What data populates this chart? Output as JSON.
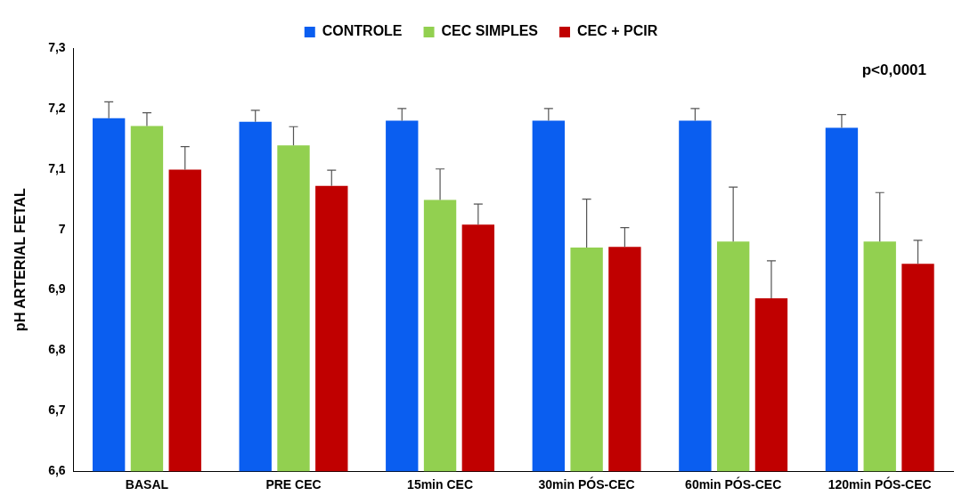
{
  "chart_data": {
    "type": "bar",
    "ylabel": "pH ARTERIAL FETAL",
    "categories": [
      "BASAL",
      "PRE CEC",
      "15min CEC",
      "30min PÓS-CEC",
      "60min PÓS-CEC",
      "120min PÓS-CEC"
    ],
    "series": [
      {
        "name": "CONTROLE",
        "color": "#0a5ef0",
        "values": [
          7.184,
          7.178,
          7.18,
          7.18,
          7.18,
          7.168
        ],
        "errors": [
          [
            7.184,
            7.211
          ],
          [
            7.178,
            7.197
          ],
          [
            7.18,
            7.2
          ],
          [
            7.18,
            7.2
          ],
          [
            7.18,
            7.2
          ],
          [
            7.168,
            7.19
          ]
        ]
      },
      {
        "name": "CEC SIMPLES",
        "color": "#92d050",
        "values": [
          7.171,
          7.139,
          7.049,
          6.97,
          6.98,
          6.98
        ],
        "errors": [
          [
            7.171,
            7.193
          ],
          [
            7.139,
            7.17
          ],
          [
            7.049,
            7.1
          ],
          [
            6.97,
            7.05
          ],
          [
            6.98,
            7.07
          ],
          [
            6.98,
            7.061
          ]
        ]
      },
      {
        "name": "CEC + PCIR",
        "color": "#c00000",
        "values": [
          7.099,
          7.072,
          7.008,
          6.971,
          6.886,
          6.943
        ],
        "errors": [
          [
            7.099,
            7.137
          ],
          [
            7.072,
            7.098
          ],
          [
            7.008,
            7.042
          ],
          [
            6.971,
            7.003
          ],
          [
            6.886,
            6.948
          ],
          [
            6.943,
            6.982
          ]
        ]
      }
    ],
    "ylim": [
      6.6,
      7.3
    ],
    "yticks": [
      {
        "value": 6.6,
        "label": "6,6"
      },
      {
        "value": 6.7,
        "label": "6,7"
      },
      {
        "value": 6.8,
        "label": "6,8"
      },
      {
        "value": 6.9,
        "label": "6,9"
      },
      7,
      {
        "value": 7.1,
        "label": "7,1"
      },
      {
        "value": 7.2,
        "label": "7,2"
      },
      {
        "value": 7.3,
        "label": "7,3"
      }
    ],
    "grid": false,
    "legend": "top",
    "annotations": [
      "p<0,0001"
    ]
  }
}
